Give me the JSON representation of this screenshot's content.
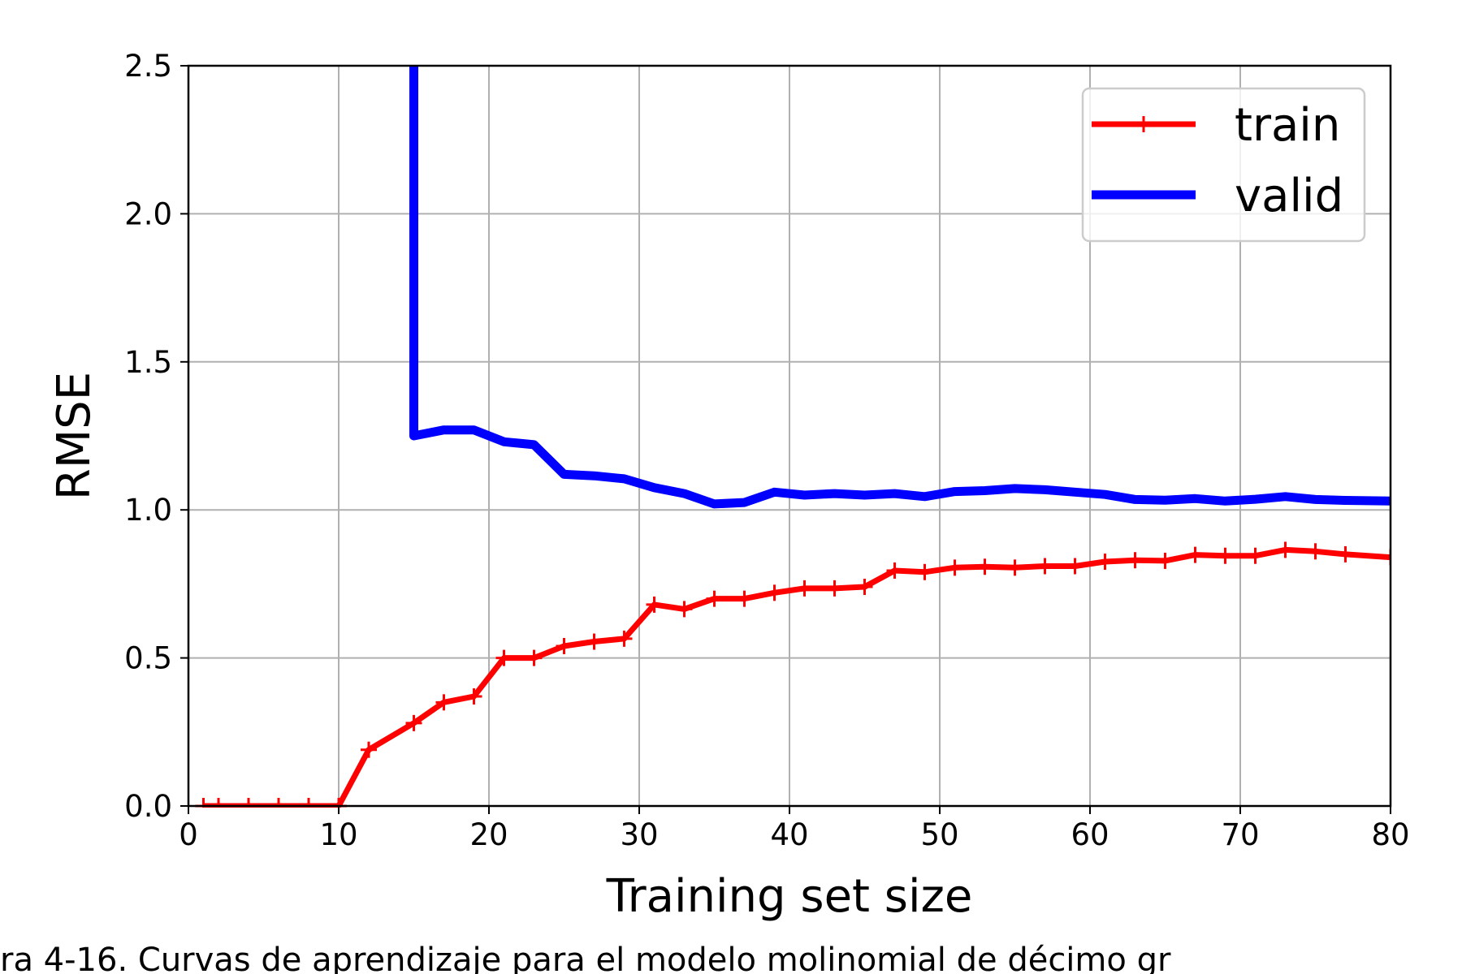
{
  "caption": "ra 4-16. Curvas de aprendizaje para el modelo molinomial de décimo gr",
  "chart_data": {
    "type": "line",
    "xlabel": "Training set size",
    "ylabel": "RMSE",
    "xlim": [
      0,
      80
    ],
    "ylim": [
      0,
      2.5
    ],
    "xticks": [
      "0",
      "10",
      "20",
      "30",
      "40",
      "50",
      "60",
      "70",
      "80"
    ],
    "yticks": [
      "0.0",
      "0.5",
      "1.0",
      "1.5",
      "2.0",
      "2.5"
    ],
    "grid": true,
    "legend_position": "top-right",
    "series": [
      {
        "name": "train",
        "color": "#ff0000",
        "marker": "plus",
        "x": [
          1,
          2,
          4,
          6,
          8,
          10,
          12,
          15,
          17,
          19,
          21,
          23,
          25,
          27,
          29,
          31,
          33,
          35,
          37,
          39,
          41,
          43,
          45,
          47,
          49,
          51,
          53,
          55,
          57,
          59,
          61,
          63,
          65,
          67,
          69,
          71,
          73,
          75,
          77,
          80
        ],
        "y": [
          0.0,
          0.0,
          0.0,
          0.0,
          0.0,
          0.0,
          0.19,
          0.28,
          0.35,
          0.37,
          0.5,
          0.5,
          0.54,
          0.555,
          0.565,
          0.68,
          0.665,
          0.7,
          0.7,
          0.72,
          0.735,
          0.735,
          0.74,
          0.795,
          0.79,
          0.805,
          0.808,
          0.805,
          0.81,
          0.81,
          0.825,
          0.83,
          0.828,
          0.848,
          0.845,
          0.845,
          0.865,
          0.86,
          0.85,
          0.84
        ]
      },
      {
        "name": "valid",
        "color": "#0000ff",
        "marker": "none",
        "x": [
          15,
          15,
          17,
          19,
          21,
          23,
          25,
          27,
          29,
          31,
          33,
          35,
          37,
          39,
          41,
          43,
          45,
          47,
          49,
          51,
          53,
          55,
          57,
          59,
          61,
          63,
          65,
          67,
          69,
          71,
          73,
          75,
          77,
          80
        ],
        "y": [
          2.5,
          1.25,
          1.27,
          1.27,
          1.23,
          1.22,
          1.12,
          1.115,
          1.105,
          1.075,
          1.055,
          1.02,
          1.025,
          1.06,
          1.05,
          1.055,
          1.05,
          1.055,
          1.045,
          1.062,
          1.065,
          1.072,
          1.068,
          1.06,
          1.052,
          1.035,
          1.033,
          1.038,
          1.03,
          1.036,
          1.045,
          1.035,
          1.032,
          1.03
        ]
      }
    ]
  }
}
